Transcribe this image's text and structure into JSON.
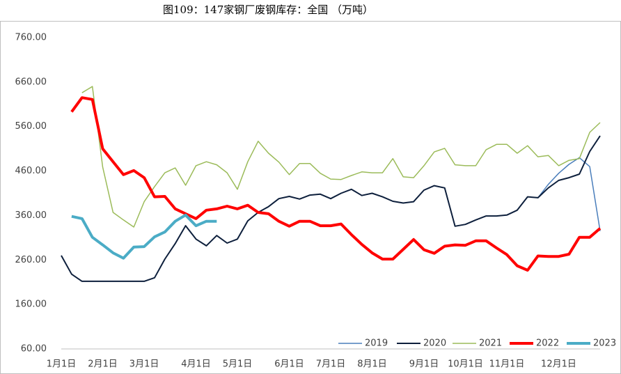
{
  "chart_data": {
    "type": "line",
    "title": "图109：147家钢厂废钢库存：全国 （万吨）",
    "categories": [
      "1月1日",
      null,
      null,
      null,
      "2月1日",
      null,
      null,
      null,
      "3月1日",
      null,
      null,
      null,
      null,
      "4月1日",
      null,
      null,
      null,
      "5月1日",
      null,
      null,
      null,
      null,
      "6月1日",
      null,
      null,
      null,
      "7月1日",
      null,
      null,
      null,
      "8月1日",
      null,
      null,
      null,
      null,
      "9月1日",
      null,
      null,
      null,
      "10月1日",
      null,
      null,
      null,
      "11月1日",
      null,
      null,
      null,
      null,
      "12月1日",
      null,
      null,
      null,
      null
    ],
    "series": [
      {
        "name": "2019",
        "color": "#4a7ebb",
        "values": [
          null,
          null,
          null,
          null,
          null,
          null,
          null,
          null,
          null,
          null,
          null,
          null,
          null,
          null,
          null,
          null,
          null,
          null,
          null,
          null,
          null,
          null,
          null,
          null,
          null,
          null,
          null,
          null,
          null,
          null,
          null,
          null,
          null,
          null,
          null,
          null,
          null,
          null,
          null,
          null,
          null,
          null,
          null,
          null,
          null,
          null,
          400,
          430,
          455,
          475,
          490,
          470,
          325
        ]
      },
      {
        "name": "2020",
        "color": "#0d1f3c",
        "values": [
          270,
          228,
          212,
          212,
          212,
          212,
          212,
          212,
          212,
          220,
          262,
          297,
          337,
          307,
          292,
          315,
          298,
          307,
          348,
          367,
          380,
          398,
          403,
          397,
          406,
          408,
          398,
          410,
          419,
          405,
          410,
          402,
          392,
          388,
          391,
          417,
          427,
          422,
          336,
          340,
          350,
          359,
          359,
          361,
          372,
          402,
          400,
          422,
          439,
          445,
          453,
          504,
          539
        ]
      },
      {
        "name": "2021",
        "color": "#9bbb59",
        "values": [
          null,
          null,
          636,
          650,
          469,
          367,
          350,
          334,
          391,
          425,
          456,
          467,
          428,
          472,
          481,
          474,
          456,
          419,
          481,
          527,
          500,
          480,
          452,
          477,
          477,
          455,
          442,
          441,
          450,
          458,
          456,
          456,
          488,
          447,
          445,
          472,
          503,
          511,
          474,
          472,
          472,
          508,
          520,
          520,
          500,
          517,
          492,
          495,
          472,
          484,
          488,
          547,
          569
        ]
      },
      {
        "name": "2022",
        "color": "#ff0000",
        "values": [
          null,
          593,
          625,
          621,
          510,
          481,
          452,
          461,
          445,
          402,
          403,
          375,
          364,
          353,
          372,
          375,
          381,
          375,
          383,
          367,
          364,
          347,
          336,
          347,
          347,
          337,
          337,
          341,
          317,
          295,
          276,
          262,
          262,
          284,
          306,
          283,
          275,
          291,
          294,
          293,
          303,
          303,
          287,
          272,
          247,
          237,
          269,
          268,
          268,
          273,
          311,
          311,
          331
        ]
      },
      {
        "name": "2023",
        "color": "#4bacc6",
        "values": [
          null,
          358,
          353,
          311,
          294,
          276,
          264,
          289,
          290,
          312,
          323,
          347,
          361,
          337,
          347,
          347,
          null,
          null,
          null,
          null,
          null,
          null,
          null,
          null,
          null,
          null,
          null,
          null,
          null,
          null,
          null,
          null,
          null,
          null,
          null,
          null,
          null,
          null,
          null,
          null,
          null,
          null,
          null,
          null,
          null,
          null,
          null,
          null,
          null,
          null,
          null,
          null,
          null
        ]
      }
    ],
    "ylim": [
      60,
      760
    ],
    "yticks": [
      {
        "value": 60,
        "label": "60.00"
      },
      {
        "value": 160,
        "label": "160.00"
      },
      {
        "value": 260,
        "label": "260.00"
      },
      {
        "value": 360,
        "label": "360.00"
      },
      {
        "value": 460,
        "label": "460.00"
      },
      {
        "value": 560,
        "label": "560.00"
      },
      {
        "value": 660,
        "label": "660.00"
      },
      {
        "value": 760,
        "label": "760.00"
      }
    ],
    "legend": "bottom-right"
  }
}
